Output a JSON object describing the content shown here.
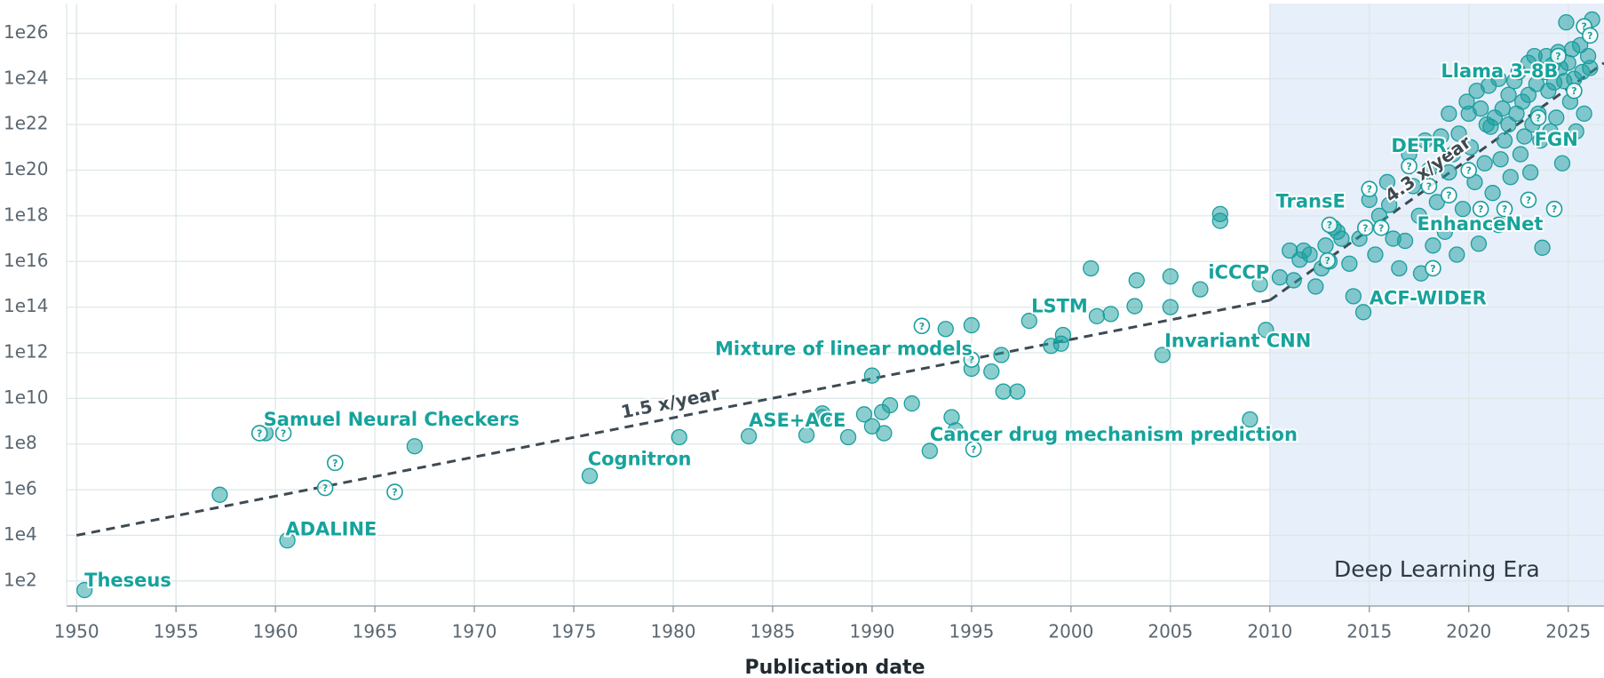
{
  "chart_data": {
    "type": "scatter",
    "x_label": "Publication date",
    "log_y": true,
    "grid": true,
    "xlim": [
      1949.5,
      2026.8
    ],
    "ylim": [
      8,
      2e+27
    ],
    "xticks": [
      1950,
      1955,
      1960,
      1965,
      1970,
      1975,
      1980,
      1985,
      1990,
      1995,
      2000,
      2005,
      2010,
      2015,
      2020,
      2025
    ],
    "yticks": [
      {
        "value": 100,
        "label": "1e2"
      },
      {
        "value": 10000.0,
        "label": "1e4"
      },
      {
        "value": 1000000.0,
        "label": "1e6"
      },
      {
        "value": 100000000.0,
        "label": "1e8"
      },
      {
        "value": 10000000000.0,
        "label": "1e10"
      },
      {
        "value": 1000000000000.0,
        "label": "1e12"
      },
      {
        "value": 100000000000000.0,
        "label": "1e14"
      },
      {
        "value": 1e+16,
        "label": "1e16"
      },
      {
        "value": 1e+18,
        "label": "1e18"
      },
      {
        "value": 1e+20,
        "label": "1e20"
      },
      {
        "value": 1e+22,
        "label": "1e22"
      },
      {
        "value": 1e+24,
        "label": "1e24"
      },
      {
        "value": 1e+26,
        "label": "1e26"
      }
    ],
    "uncertain_marker": "?",
    "series": [
      {
        "color": "#1a9e9e",
        "x": [
          1950.4,
          1957.2,
          1959.5,
          1960.6,
          1967,
          1975.8,
          1980.3,
          1983.8,
          1986.7,
          1987.5,
          1987.5,
          1988.8,
          1989.6,
          1990,
          1990,
          1990.5,
          1990.6,
          1990.9,
          1992,
          1992.9,
          1993.7,
          1994,
          1994.2,
          1995,
          1995,
          1996,
          1996.5,
          1996.6,
          1997.3,
          1997.9,
          1999,
          1999.5,
          1999.6,
          2001,
          2001.3,
          2002,
          2003.2,
          2003.3,
          2004.6,
          2005,
          2005,
          2006.5,
          2007.5,
          2007.5,
          2009,
          2009.5,
          2009.8,
          2010.5,
          2011,
          2011.2,
          2011.5,
          2011.7,
          2012,
          2012.3,
          2012.6,
          2012.8,
          2013,
          2013.2,
          2013.4,
          2013.6,
          2014,
          2014.2,
          2014.5,
          2014.7,
          2015,
          2015.3,
          2015.5,
          2015.9,
          2016,
          2016.2,
          2016.5,
          2016.8,
          2017,
          2017.2,
          2017.5,
          2017.6,
          2017.8,
          2018,
          2018.2,
          2018.4,
          2018.6,
          2018.8,
          2019,
          2019,
          2019.2,
          2019.4,
          2019.5,
          2019.7,
          2019.9,
          2020,
          2020.1,
          2020.3,
          2020.4,
          2020.5,
          2020.6,
          2020.8,
          2020.9,
          2021,
          2021.1,
          2021.2,
          2021.3,
          2021.5,
          2021.6,
          2021.7,
          2021.8,
          2022,
          2022,
          2022.1,
          2022.3,
          2022.4,
          2022.5,
          2022.6,
          2022.7,
          2022.8,
          2023,
          2023,
          2023.1,
          2023.2,
          2023.3,
          2023.4,
          2023.5,
          2023.6,
          2023.7,
          2023.8,
          2023.9,
          2024,
          2024.1,
          2024.2,
          2024.3,
          2024.4,
          2024.5,
          2024.6,
          2024.7,
          2024.8,
          2024.9,
          2025,
          2025.1,
          2025.2,
          2025.3,
          2025.4,
          2025.6,
          2025.7,
          2025.8,
          2026,
          2026.1,
          2026.2
        ],
        "values": [
          40,
          600000.0,
          300000000.0,
          6000.0,
          80000000.0,
          4000000.0,
          200000000.0,
          220000000.0,
          250000000.0,
          2200000000.0,
          1500000000.0,
          200000000.0,
          2000000000.0,
          600000000.0,
          100000000000.0,
          2500000000.0,
          300000000.0,
          5000000000.0,
          6000000000.0,
          50000000.0,
          11000000000000.0,
          1500000000.0,
          400000000.0,
          16000000000000.0,
          200000000000.0,
          150000000000.0,
          800000000000.0,
          20000000000.0,
          20000000000.0,
          25000000000000.0,
          2000000000000.0,
          2500000000000.0,
          6000000000000.0,
          5000000000000000.0,
          40000000000000.0,
          50000000000000.0,
          110000000000000.0,
          1500000000000000.0,
          800000000000.0,
          2200000000000000.0,
          100000000000000.0,
          600000000000000.0,
          1.2e+18,
          6e+17,
          1200000000.0,
          1000000000000000.0,
          10000000000000.0,
          2000000000000000.0,
          3e+16,
          1500000000000000.0,
          1.2e+16,
          3e+16,
          2e+16,
          800000000000000.0,
          5000000000000000.0,
          5e+16,
          1e+16,
          3e+17,
          2e+17,
          1e+17,
          8000000000000000.0,
          300000000000000.0,
          1e+17,
          60000000000000.0,
          5e+18,
          2e+16,
          1e+18,
          3e+19,
          3e+18,
          1e+17,
          5000000000000000.0,
          8e+16,
          5e+20,
          2e+19,
          1e+18,
          3000000000000000.0,
          2e+21,
          1e+20,
          5e+16,
          4e+18,
          3e+21,
          2e+17,
          3e+22,
          8e+19,
          5e+20,
          2e+16,
          4e+21,
          2e+18,
          1e+23,
          3e+22,
          1e+21,
          3e+19,
          3e+23,
          6e+16,
          5e+22,
          2e+20,
          1e+22,
          5e+23,
          8e+21,
          1e+19,
          2e+22,
          1e+24,
          3e+20,
          5e+22,
          2e+21,
          2e+23,
          1e+22,
          5e+19,
          8e+23,
          3e+22,
          2e+24,
          5e+20,
          1e+23,
          3e+21,
          5e+24,
          2e+23,
          8e+19,
          1e+22,
          1e+25,
          6e+23,
          3e+22,
          2e+21,
          4e+16,
          2e+24,
          1e+25,
          3e+23,
          5e+21,
          4e+24,
          7e+23,
          2e+22,
          1.5e+25,
          3e+24,
          2e+20,
          8e+23,
          3e+26,
          5e+24,
          1e+23,
          2e+25,
          1e+24,
          5e+21,
          3e+25,
          2e+24,
          3e+22,
          1e+25,
          3e+24,
          4e+26
        ]
      },
      {
        "color": "#1a9e9e",
        "uncertain": true,
        "x": [
          1959.2,
          1960.4,
          1962.5,
          1963,
          1966,
          1992.5,
          1995,
          1995.1,
          2012.9,
          2013,
          2014.8,
          2015,
          2015.6,
          2017,
          2018,
          2018.2,
          2019,
          2020,
          2020.6,
          2021.5,
          2021.8,
          2023,
          2023.5,
          2024.3,
          2024.5,
          2025.3,
          2025.8,
          2026.1
        ],
        "values": [
          300000000.0,
          300000000.0,
          1200000.0,
          15000000.0,
          800000.0,
          15000000000000.0,
          500000000000.0,
          60000000.0,
          1.1e+16,
          4e+17,
          3e+17,
          1.5e+19,
          3e+17,
          1.5e+20,
          2e+19,
          5000000000000000.0,
          8e+18,
          1e+20,
          2e+18,
          4e+17,
          2e+18,
          5e+18,
          2e+22,
          2e+18,
          1e+25,
          3e+23,
          2e+26,
          8e+25
        ]
      }
    ],
    "trends": [
      {
        "label": "1.5 x/year",
        "x": [
          1950,
          2010
        ],
        "values": [
          10000.0,
          200000000000000.0
        ]
      },
      {
        "label": "4.3 x/year",
        "x": [
          2010,
          2026.8
        ],
        "values": [
          200000000000000.0,
          5e+24
        ]
      }
    ],
    "shade": {
      "label": "Deep Learning Era",
      "start": 2010,
      "color": "#e7effa"
    },
    "annotations": [
      {
        "text": "Theseus",
        "x": 1950.4,
        "y": 100
      },
      {
        "text": "ADALINE",
        "x": 1960.5,
        "y": 17000.0
      },
      {
        "text": "Samuel Neural Checkers",
        "x": 1959.4,
        "y": 1100000000.0
      },
      {
        "text": "Cognitron",
        "x": 1975.7,
        "y": 20000000.0
      },
      {
        "text": "ASE+ACE",
        "x": 1983.8,
        "y": 1000000000.0
      },
      {
        "text": "Mixture of linear models",
        "x": 1982.1,
        "y": 1350000000000.0
      },
      {
        "text": "Cancer drug mechanism prediction",
        "x": 1992.9,
        "y": 240000000.0
      },
      {
        "text": "LSTM",
        "x": 1998.0,
        "y": 100000000000000.0
      },
      {
        "text": "Invariant CNN",
        "x": 2004.7,
        "y": 3000000000000.0
      },
      {
        "text": "iCCCP",
        "x": 2006.9,
        "y": 3000000000000000.0
      },
      {
        "text": "TransE",
        "x": 2010.3,
        "y": 4e+18
      },
      {
        "text": "ACF-WIDER",
        "x": 2015.0,
        "y": 230000000000000.0
      },
      {
        "text": "EnhanceNet",
        "x": 2017.4,
        "y": 4e+17
      },
      {
        "text": "DETR",
        "x": 2016.1,
        "y": 1.1e+21
      },
      {
        "text": "FGN",
        "x": 2023.3,
        "y": 2e+21
      },
      {
        "text": "Llama 3-8B",
        "x": 2018.6,
        "y": 2e+24
      }
    ]
  }
}
